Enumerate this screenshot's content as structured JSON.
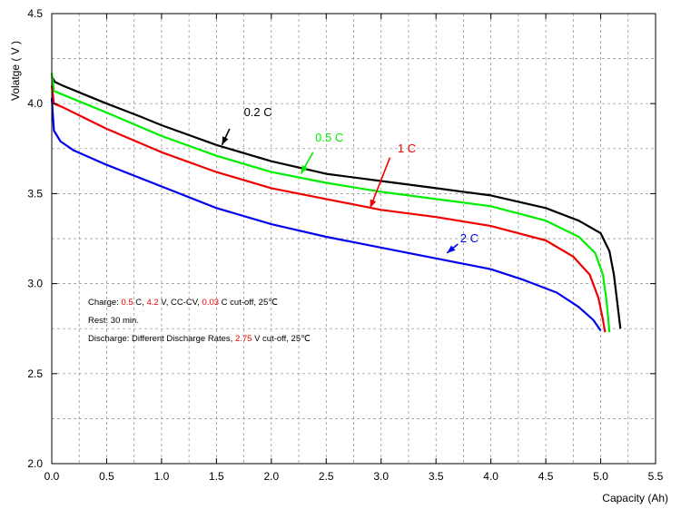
{
  "chart_data": {
    "type": "line",
    "xlabel": "Capacity",
    "xunit": "(Ah)",
    "ylabel": "Volatge",
    "yunit": "( V )",
    "xlim": [
      0,
      5.5
    ],
    "ylim": [
      2.0,
      4.5
    ],
    "x_ticks": [
      "0.0",
      "0.5",
      "1.0",
      "1.5",
      "2.0",
      "2.5",
      "3.0",
      "3.5",
      "4.0",
      "4.5",
      "5.0",
      "5.5"
    ],
    "y_ticks": [
      "2.0",
      "2.5",
      "3.0",
      "3.5",
      "4.0",
      "4.5"
    ],
    "grid": true,
    "series": [
      {
        "name": "0.2 C",
        "color": "#000000",
        "points": [
          [
            0.0,
            4.15
          ],
          [
            0.03,
            4.12
          ],
          [
            0.1,
            4.1
          ],
          [
            0.3,
            4.05
          ],
          [
            0.5,
            4.0
          ],
          [
            0.8,
            3.93
          ],
          [
            1.0,
            3.88
          ],
          [
            1.5,
            3.77
          ],
          [
            2.0,
            3.68
          ],
          [
            2.5,
            3.61
          ],
          [
            3.0,
            3.57
          ],
          [
            3.5,
            3.53
          ],
          [
            4.0,
            3.49
          ],
          [
            4.5,
            3.42
          ],
          [
            4.8,
            3.35
          ],
          [
            5.0,
            3.28
          ],
          [
            5.08,
            3.18
          ],
          [
            5.12,
            3.05
          ],
          [
            5.15,
            2.9
          ],
          [
            5.17,
            2.8
          ],
          [
            5.18,
            2.75
          ]
        ]
      },
      {
        "name": "0.5 C",
        "color": "#00ee00",
        "points": [
          [
            0.0,
            4.17
          ],
          [
            0.02,
            4.07
          ],
          [
            0.1,
            4.05
          ],
          [
            0.3,
            4.0
          ],
          [
            0.5,
            3.95
          ],
          [
            1.0,
            3.82
          ],
          [
            1.5,
            3.71
          ],
          [
            2.0,
            3.62
          ],
          [
            2.5,
            3.56
          ],
          [
            3.0,
            3.51
          ],
          [
            3.5,
            3.47
          ],
          [
            4.0,
            3.43
          ],
          [
            4.5,
            3.35
          ],
          [
            4.8,
            3.26
          ],
          [
            4.95,
            3.17
          ],
          [
            5.02,
            3.05
          ],
          [
            5.05,
            2.92
          ],
          [
            5.07,
            2.8
          ],
          [
            5.08,
            2.73
          ]
        ]
      },
      {
        "name": "1 C",
        "color": "#ee0000",
        "points": [
          [
            0.0,
            4.1
          ],
          [
            0.02,
            4.0
          ],
          [
            0.1,
            3.98
          ],
          [
            0.3,
            3.92
          ],
          [
            0.5,
            3.86
          ],
          [
            1.0,
            3.73
          ],
          [
            1.5,
            3.62
          ],
          [
            2.0,
            3.53
          ],
          [
            2.5,
            3.47
          ],
          [
            3.0,
            3.41
          ],
          [
            3.5,
            3.37
          ],
          [
            4.0,
            3.32
          ],
          [
            4.5,
            3.24
          ],
          [
            4.75,
            3.15
          ],
          [
            4.9,
            3.05
          ],
          [
            4.98,
            2.92
          ],
          [
            5.02,
            2.8
          ],
          [
            5.04,
            2.73
          ]
        ]
      },
      {
        "name": "2 C",
        "color": "#0000ee",
        "points": [
          [
            0.0,
            4.03
          ],
          [
            0.02,
            3.85
          ],
          [
            0.08,
            3.79
          ],
          [
            0.2,
            3.74
          ],
          [
            0.5,
            3.66
          ],
          [
            1.0,
            3.54
          ],
          [
            1.5,
            3.42
          ],
          [
            2.0,
            3.33
          ],
          [
            2.5,
            3.26
          ],
          [
            3.0,
            3.2
          ],
          [
            3.5,
            3.14
          ],
          [
            4.0,
            3.08
          ],
          [
            4.3,
            3.02
          ],
          [
            4.6,
            2.95
          ],
          [
            4.8,
            2.87
          ],
          [
            4.93,
            2.8
          ],
          [
            5.0,
            2.74
          ]
        ]
      }
    ],
    "annotations": [
      {
        "text": "0.2 C",
        "color": "#000000",
        "text_at": [
          1.75,
          3.93
        ],
        "arrow_from": [
          1.62,
          3.86
        ],
        "arrow_to": [
          1.55,
          3.77
        ]
      },
      {
        "text": "0.5 C",
        "color": "#00ee00",
        "text_at": [
          2.4,
          3.79
        ],
        "arrow_from": [
          2.38,
          3.73
        ],
        "arrow_to": [
          2.27,
          3.61
        ]
      },
      {
        "text": "1 C",
        "color": "#ee0000",
        "text_at": [
          3.15,
          3.73
        ],
        "arrow_from": [
          3.08,
          3.7
        ],
        "arrow_to": [
          2.9,
          3.42
        ]
      },
      {
        "text": "2 C",
        "color": "#0000ee",
        "text_at": [
          3.72,
          3.23
        ],
        "arrow_from": [
          3.7,
          3.22
        ],
        "arrow_to": [
          3.6,
          3.17
        ]
      }
    ],
    "notes": [
      {
        "parts": [
          {
            "text": "Charge: ",
            "color": "#000000"
          },
          {
            "text": "0.5",
            "color": "#ee0000"
          },
          {
            "text": " C, ",
            "color": "#000000"
          },
          {
            "text": "4.2",
            "color": "#ee0000"
          },
          {
            "text": " V, CC-CV, ",
            "color": "#000000"
          },
          {
            "text": "0.03",
            "color": "#ee0000"
          },
          {
            "text": " C cut-off, 25℃",
            "color": "#000000"
          }
        ]
      },
      {
        "parts": [
          {
            "text": "Rest: 30 min.",
            "color": "#000000"
          }
        ]
      },
      {
        "parts": [
          {
            "text": "Discharge: Different Discharge Rates, ",
            "color": "#000000"
          },
          {
            "text": "2.75",
            "color": "#ee0000"
          },
          {
            "text": " V cut-off, 25℃",
            "color": "#000000"
          }
        ]
      }
    ]
  }
}
